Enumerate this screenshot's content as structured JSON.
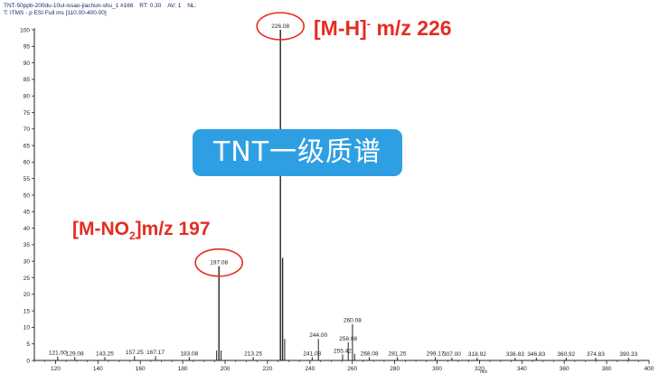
{
  "header": {
    "line1_prefix": "TNT-50ppb-200du-10ul-issao-jiachun-shu_1 #166",
    "rt_label": "RT:",
    "rt_value": "0.30",
    "av_label": "AV:",
    "av_value": "1",
    "nl_label": "NL:",
    "line2": "T: ITMS - p ESI Full ms [110.00-400.00]"
  },
  "banner": {
    "text": "TNT一级质谱"
  },
  "annotations": {
    "mh": {
      "text": "[M-H]",
      "sup": "-",
      "rest": " m/z 226"
    },
    "mno2": {
      "pre": "[M-NO",
      "sub": "2",
      "post": "]m/z 197"
    }
  },
  "styles": {
    "red": "#e32d22",
    "spectrum": "#222222",
    "banner": "#2f9fe3",
    "header_text": "#1a2a6c"
  },
  "chart_data": {
    "type": "bar",
    "title": "",
    "xlabel": "m/z",
    "ylabel": "",
    "xlim": [
      110,
      400
    ],
    "ylim": [
      0,
      100
    ],
    "x_ticks": [
      120,
      140,
      160,
      180,
      200,
      220,
      240,
      260,
      280,
      300,
      320,
      340,
      360,
      380,
      400
    ],
    "y_ticks": [
      0,
      5,
      10,
      15,
      20,
      25,
      30,
      35,
      40,
      45,
      50,
      55,
      60,
      65,
      70,
      75,
      80,
      85,
      90,
      95,
      100
    ],
    "peaks": [
      {
        "mz": 121.0,
        "rel": 1.2,
        "label": "121.00"
      },
      {
        "mz": 129.08,
        "rel": 1.0,
        "label": "129.08"
      },
      {
        "mz": 143.25,
        "rel": 1.0,
        "label": "143.25"
      },
      {
        "mz": 157.25,
        "rel": 1.3,
        "label": "157.25"
      },
      {
        "mz": 167.17,
        "rel": 1.3,
        "label": "167.17"
      },
      {
        "mz": 183.08,
        "rel": 1.0,
        "label": "183.08"
      },
      {
        "mz": 196.0,
        "rel": 3.0,
        "label": ""
      },
      {
        "mz": 197.08,
        "rel": 28.5,
        "label": "197.08"
      },
      {
        "mz": 198.1,
        "rel": 3.0,
        "label": ""
      },
      {
        "mz": 213.25,
        "rel": 1.0,
        "label": "213.25"
      },
      {
        "mz": 226.08,
        "rel": 100,
        "label": "226.08"
      },
      {
        "mz": 227.1,
        "rel": 31.0,
        "label": ""
      },
      {
        "mz": 228.1,
        "rel": 6.5,
        "label": ""
      },
      {
        "mz": 241.08,
        "rel": 1.0,
        "label": "241.08"
      },
      {
        "mz": 244.0,
        "rel": 6.5,
        "label": "244.00"
      },
      {
        "mz": 255.42,
        "rel": 1.8,
        "label": "255.42"
      },
      {
        "mz": 258.08,
        "rel": 5.5,
        "label": "258.08"
      },
      {
        "mz": 260.08,
        "rel": 11.0,
        "label": "260.08"
      },
      {
        "mz": 261.1,
        "rel": 2.0,
        "label": ""
      },
      {
        "mz": 268.08,
        "rel": 1.0,
        "label": "268.08"
      },
      {
        "mz": 281.25,
        "rel": 1.0,
        "label": "281.25"
      },
      {
        "mz": 299.17,
        "rel": 1.0,
        "label": "299.17"
      },
      {
        "mz": 307.0,
        "rel": 0.8,
        "label": "307.00"
      },
      {
        "mz": 318.92,
        "rel": 0.8,
        "label": "318.92"
      },
      {
        "mz": 336.83,
        "rel": 0.8,
        "label": "336.83"
      },
      {
        "mz": 346.83,
        "rel": 0.8,
        "label": "346.83"
      },
      {
        "mz": 360.92,
        "rel": 0.8,
        "label": "360.92"
      },
      {
        "mz": 374.83,
        "rel": 0.8,
        "label": "374.83"
      },
      {
        "mz": 390.33,
        "rel": 0.8,
        "label": "390.33"
      }
    ],
    "circled_peaks": [
      "226.08",
      "197.08"
    ]
  }
}
